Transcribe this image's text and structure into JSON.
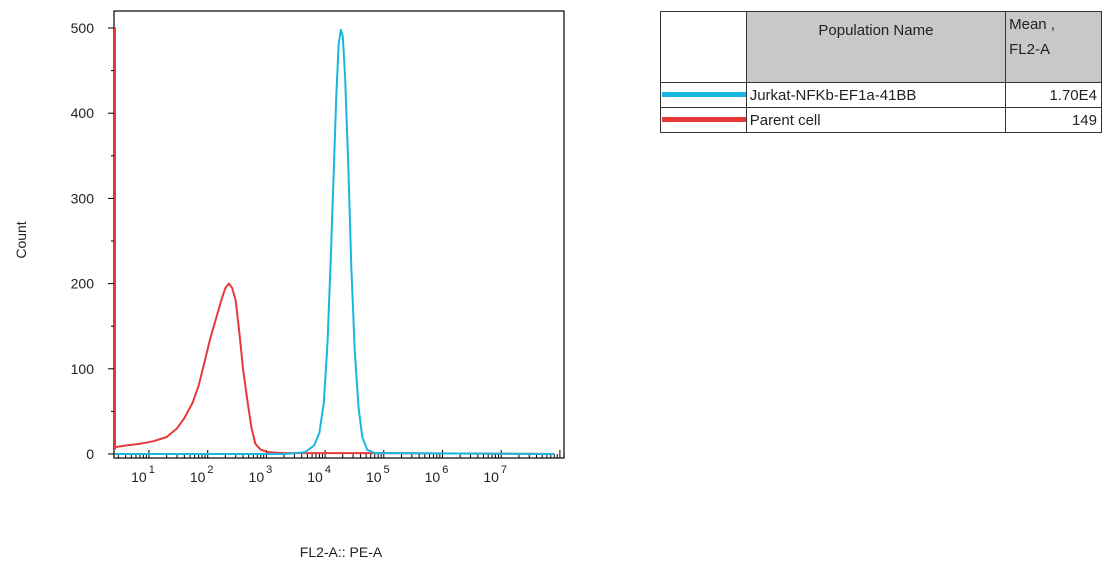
{
  "chart_data": {
    "type": "line",
    "xlabel": "FL2-A:: PE-A",
    "ylabel": "Count",
    "x_scale": "log",
    "x_ticks": [
      {
        "base": "10",
        "exp": "1",
        "value": 10
      },
      {
        "base": "10",
        "exp": "2",
        "value": 100
      },
      {
        "base": "10",
        "exp": "3",
        "value": 1000
      },
      {
        "base": "10",
        "exp": "4",
        "value": 10000
      },
      {
        "base": "10",
        "exp": "5",
        "value": 100000
      },
      {
        "base": "10",
        "exp": "6",
        "value": 1000000
      },
      {
        "base": "10",
        "exp": "7",
        "value": 10000000
      }
    ],
    "y_ticks": [
      "0",
      "100",
      "200",
      "300",
      "400",
      "500"
    ],
    "ylim": [
      0,
      520
    ],
    "grid": false,
    "series": [
      {
        "name": "Parent cell",
        "color": "#e8393a",
        "points": [
          [
            1.6,
            5
          ],
          [
            1.62,
            500
          ],
          [
            1.66,
            260
          ],
          [
            1.72,
            30
          ],
          [
            1.8,
            10
          ],
          [
            2.5,
            8
          ],
          [
            4,
            10
          ],
          [
            7,
            12
          ],
          [
            12,
            15
          ],
          [
            20,
            20
          ],
          [
            30,
            30
          ],
          [
            40,
            42
          ],
          [
            55,
            60
          ],
          [
            70,
            80
          ],
          [
            90,
            110
          ],
          [
            110,
            135
          ],
          [
            140,
            160
          ],
          [
            170,
            180
          ],
          [
            200,
            195
          ],
          [
            230,
            200
          ],
          [
            260,
            195
          ],
          [
            300,
            180
          ],
          [
            350,
            140
          ],
          [
            400,
            100
          ],
          [
            480,
            60
          ],
          [
            560,
            30
          ],
          [
            650,
            12
          ],
          [
            800,
            5
          ],
          [
            1100,
            2
          ],
          [
            2000,
            1
          ],
          [
            100000,
            1
          ],
          [
            80000000,
            0
          ]
        ]
      },
      {
        "name": "Jurkat-NFKb-EF1a-41BB",
        "color": "#19b7df",
        "points": [
          [
            1.6,
            0
          ],
          [
            2000,
            0
          ],
          [
            4500,
            2
          ],
          [
            6500,
            10
          ],
          [
            8000,
            25
          ],
          [
            9500,
            60
          ],
          [
            11000,
            130
          ],
          [
            12500,
            230
          ],
          [
            14000,
            330
          ],
          [
            15500,
            420
          ],
          [
            17000,
            480
          ],
          [
            18500,
            498
          ],
          [
            20000,
            490
          ],
          [
            22000,
            440
          ],
          [
            25000,
            330
          ],
          [
            28000,
            220
          ],
          [
            32000,
            120
          ],
          [
            37000,
            55
          ],
          [
            43000,
            20
          ],
          [
            52000,
            5
          ],
          [
            70000,
            1
          ],
          [
            80000000,
            0
          ]
        ]
      }
    ]
  },
  "legend": {
    "header_name": "Population Name",
    "header_mean": "Mean ,",
    "header_mean_param": "FL2-A",
    "rows": [
      {
        "name": "Jurkat-NFKb-EF1a-41BB",
        "value": "1.70E4",
        "color": "#19b7df"
      },
      {
        "name": "Parent cell",
        "value": "149",
        "color": "#e8393a"
      }
    ]
  }
}
